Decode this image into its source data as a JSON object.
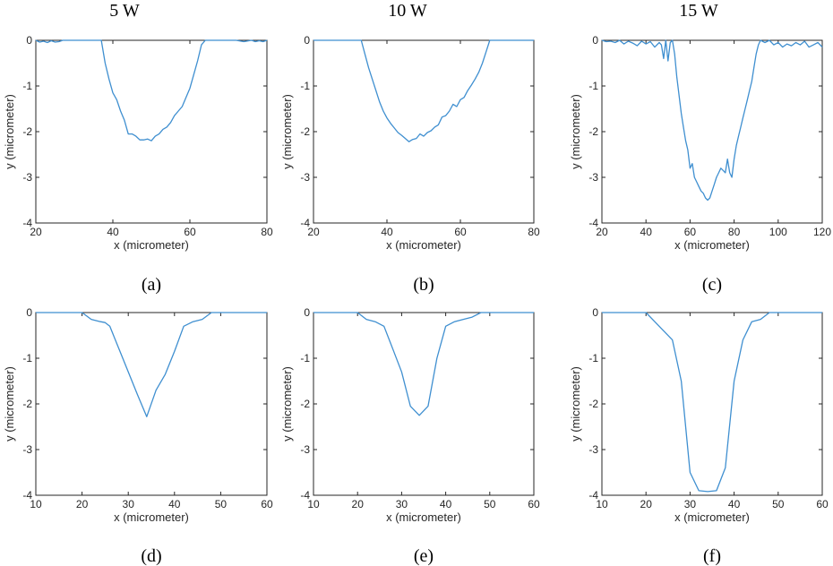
{
  "figure": {
    "column_titles": [
      "5 W",
      "10 W",
      "15 W"
    ],
    "colors": {
      "series": "#3f8fd0",
      "axis": "#262626"
    }
  },
  "chart_data": [
    {
      "type": "line",
      "panel_label": "(a)",
      "title": "",
      "xlabel": "x (micrometer)",
      "ylabel": "y (micrometer)",
      "xlim": [
        20,
        80
      ],
      "ylim": [
        -4,
        0
      ],
      "xticks": [
        20,
        40,
        60,
        80
      ],
      "yticks": [
        0,
        -1,
        -2,
        -3,
        -4
      ],
      "x": [
        20,
        21,
        22,
        23,
        24,
        25,
        26,
        27,
        28,
        30,
        32,
        34,
        36,
        37,
        38,
        39,
        40,
        41,
        42,
        43,
        44,
        45,
        46,
        47,
        48,
        49,
        50,
        51,
        52,
        53,
        54,
        55,
        56,
        57,
        58,
        59,
        60,
        61,
        62,
        63,
        64,
        66,
        68,
        70,
        72,
        74,
        76,
        77,
        78,
        79,
        80
      ],
      "y": [
        0,
        -0.04,
        -0.02,
        -0.05,
        -0.01,
        -0.04,
        -0.03,
        0,
        0,
        0,
        0,
        0,
        0,
        0,
        -0.5,
        -0.85,
        -1.15,
        -1.3,
        -1.55,
        -1.75,
        -2.05,
        -2.05,
        -2.1,
        -2.18,
        -2.18,
        -2.16,
        -2.2,
        -2.1,
        -2.05,
        -1.95,
        -1.9,
        -1.8,
        -1.65,
        -1.55,
        -1.45,
        -1.25,
        -1.05,
        -0.75,
        -0.45,
        -0.1,
        0,
        0,
        0,
        0,
        0,
        -0.03,
        0,
        -0.03,
        -0.01,
        -0.03,
        0
      ]
    },
    {
      "type": "line",
      "panel_label": "(b)",
      "title": "",
      "xlabel": "x (micrometer)",
      "ylabel": "y (micrometer)",
      "xlim": [
        20,
        80
      ],
      "ylim": [
        -4,
        0
      ],
      "xticks": [
        20,
        40,
        60,
        80
      ],
      "yticks": [
        0,
        -1,
        -2,
        -3,
        -4
      ],
      "x": [
        20,
        25,
        30,
        33,
        34,
        35,
        36,
        37,
        38,
        39,
        40,
        41,
        42,
        43,
        44,
        45,
        46,
        47,
        48,
        49,
        50,
        51,
        52,
        53,
        54,
        55,
        56,
        57,
        58,
        59,
        60,
        61,
        62,
        63,
        64,
        65,
        66,
        67,
        68,
        70,
        75,
        80
      ],
      "y": [
        0,
        0,
        0,
        0,
        -0.3,
        -0.6,
        -0.85,
        -1.1,
        -1.35,
        -1.55,
        -1.7,
        -1.82,
        -1.92,
        -2.02,
        -2.08,
        -2.15,
        -2.22,
        -2.17,
        -2.15,
        -2.05,
        -2.1,
        -2.02,
        -1.98,
        -1.9,
        -1.85,
        -1.68,
        -1.65,
        -1.55,
        -1.4,
        -1.45,
        -1.3,
        -1.25,
        -1.1,
        -0.98,
        -0.85,
        -0.7,
        -0.5,
        -0.25,
        0,
        0,
        0,
        0
      ]
    },
    {
      "type": "line",
      "panel_label": "(c)",
      "title": "",
      "xlabel": "x (micrometer)",
      "ylabel": "y (micrometer)",
      "xlim": [
        20,
        120
      ],
      "ylim": [
        -4,
        0
      ],
      "xticks": [
        20,
        40,
        60,
        80,
        100,
        120
      ],
      "yticks": [
        0,
        -1,
        -2,
        -3,
        -4
      ],
      "x": [
        20,
        22,
        24,
        26,
        28,
        30,
        32,
        34,
        36,
        38,
        40,
        42,
        44,
        46,
        47,
        48,
        49,
        50,
        51,
        52,
        53,
        54,
        55,
        56,
        57,
        58,
        59,
        60,
        61,
        62,
        63,
        64,
        65,
        66,
        67,
        68,
        69,
        70,
        71,
        72,
        73,
        74,
        75,
        76,
        77,
        78,
        79,
        80,
        81,
        82,
        83,
        84,
        85,
        86,
        87,
        88,
        89,
        90,
        91,
        92,
        94,
        96,
        98,
        100,
        102,
        104,
        106,
        108,
        110,
        112,
        114,
        116,
        118,
        120
      ],
      "y": [
        0,
        -0.03,
        -0.02,
        -0.05,
        0,
        -0.08,
        -0.02,
        -0.06,
        -0.12,
        -0.02,
        -0.08,
        -0.03,
        -0.15,
        -0.05,
        -0.1,
        -0.4,
        0,
        -0.45,
        -0.05,
        0,
        -0.3,
        -0.8,
        -1.2,
        -1.6,
        -1.9,
        -2.2,
        -2.4,
        -2.8,
        -2.7,
        -3.0,
        -3.1,
        -3.2,
        -3.3,
        -3.35,
        -3.45,
        -3.5,
        -3.45,
        -3.3,
        -3.15,
        -3.0,
        -2.9,
        -2.8,
        -2.85,
        -2.9,
        -2.6,
        -2.9,
        -3.0,
        -2.6,
        -2.3,
        -2.1,
        -1.9,
        -1.7,
        -1.5,
        -1.3,
        -1.1,
        -0.9,
        -0.6,
        -0.3,
        -0.1,
        0,
        -0.05,
        0,
        -0.1,
        -0.05,
        -0.15,
        -0.08,
        -0.12,
        -0.05,
        -0.1,
        -0.02,
        -0.15,
        -0.1,
        -0.05,
        -0.15
      ]
    },
    {
      "type": "line",
      "panel_label": "(d)",
      "title": "",
      "xlabel": "x (micrometer)",
      "ylabel": "y (micrometer)",
      "xlim": [
        10,
        60
      ],
      "ylim": [
        -4,
        0
      ],
      "xticks": [
        10,
        20,
        30,
        40,
        50,
        60
      ],
      "yticks": [
        0,
        -1,
        -2,
        -3,
        -4
      ],
      "x": [
        10,
        15,
        20,
        22,
        24,
        25,
        26,
        28,
        30,
        32,
        34,
        36,
        38,
        40,
        42,
        44,
        46,
        48,
        50,
        55,
        60
      ],
      "y": [
        0,
        0,
        0,
        -0.15,
        -0.2,
        -0.22,
        -0.3,
        -0.8,
        -1.3,
        -1.8,
        -2.28,
        -1.7,
        -1.35,
        -0.85,
        -0.3,
        -0.2,
        -0.15,
        0,
        0,
        0,
        0
      ]
    },
    {
      "type": "line",
      "panel_label": "(e)",
      "title": "",
      "xlabel": "x (micrometer)",
      "ylabel": "y (micrometer)",
      "xlim": [
        10,
        60
      ],
      "ylim": [
        -4,
        0
      ],
      "xticks": [
        10,
        20,
        30,
        40,
        50,
        60
      ],
      "yticks": [
        0,
        -1,
        -2,
        -3,
        -4
      ],
      "x": [
        10,
        15,
        20,
        22,
        24,
        26,
        28,
        30,
        32,
        34,
        36,
        38,
        40,
        42,
        44,
        46,
        48,
        50,
        55,
        60
      ],
      "y": [
        0,
        0,
        0,
        -0.15,
        -0.2,
        -0.3,
        -0.8,
        -1.3,
        -2.05,
        -2.25,
        -2.05,
        -1.0,
        -0.3,
        -0.2,
        -0.15,
        -0.1,
        0,
        0,
        0,
        0
      ]
    },
    {
      "type": "line",
      "panel_label": "(f)",
      "title": "",
      "xlabel": "x (micrometer)",
      "ylabel": "y (micrometer)",
      "xlim": [
        10,
        60
      ],
      "ylim": [
        -4,
        0
      ],
      "xticks": [
        10,
        20,
        30,
        40,
        50,
        60
      ],
      "yticks": [
        0,
        -1,
        -2,
        -3,
        -4
      ],
      "x": [
        10,
        15,
        20,
        22,
        24,
        26,
        28,
        30,
        32,
        34,
        36,
        38,
        40,
        42,
        44,
        46,
        48,
        50,
        55,
        60
      ],
      "y": [
        0,
        0,
        0,
        -0.2,
        -0.4,
        -0.6,
        -1.5,
        -3.5,
        -3.9,
        -3.92,
        -3.9,
        -3.4,
        -1.5,
        -0.6,
        -0.2,
        -0.15,
        0,
        0,
        0,
        0
      ]
    }
  ]
}
